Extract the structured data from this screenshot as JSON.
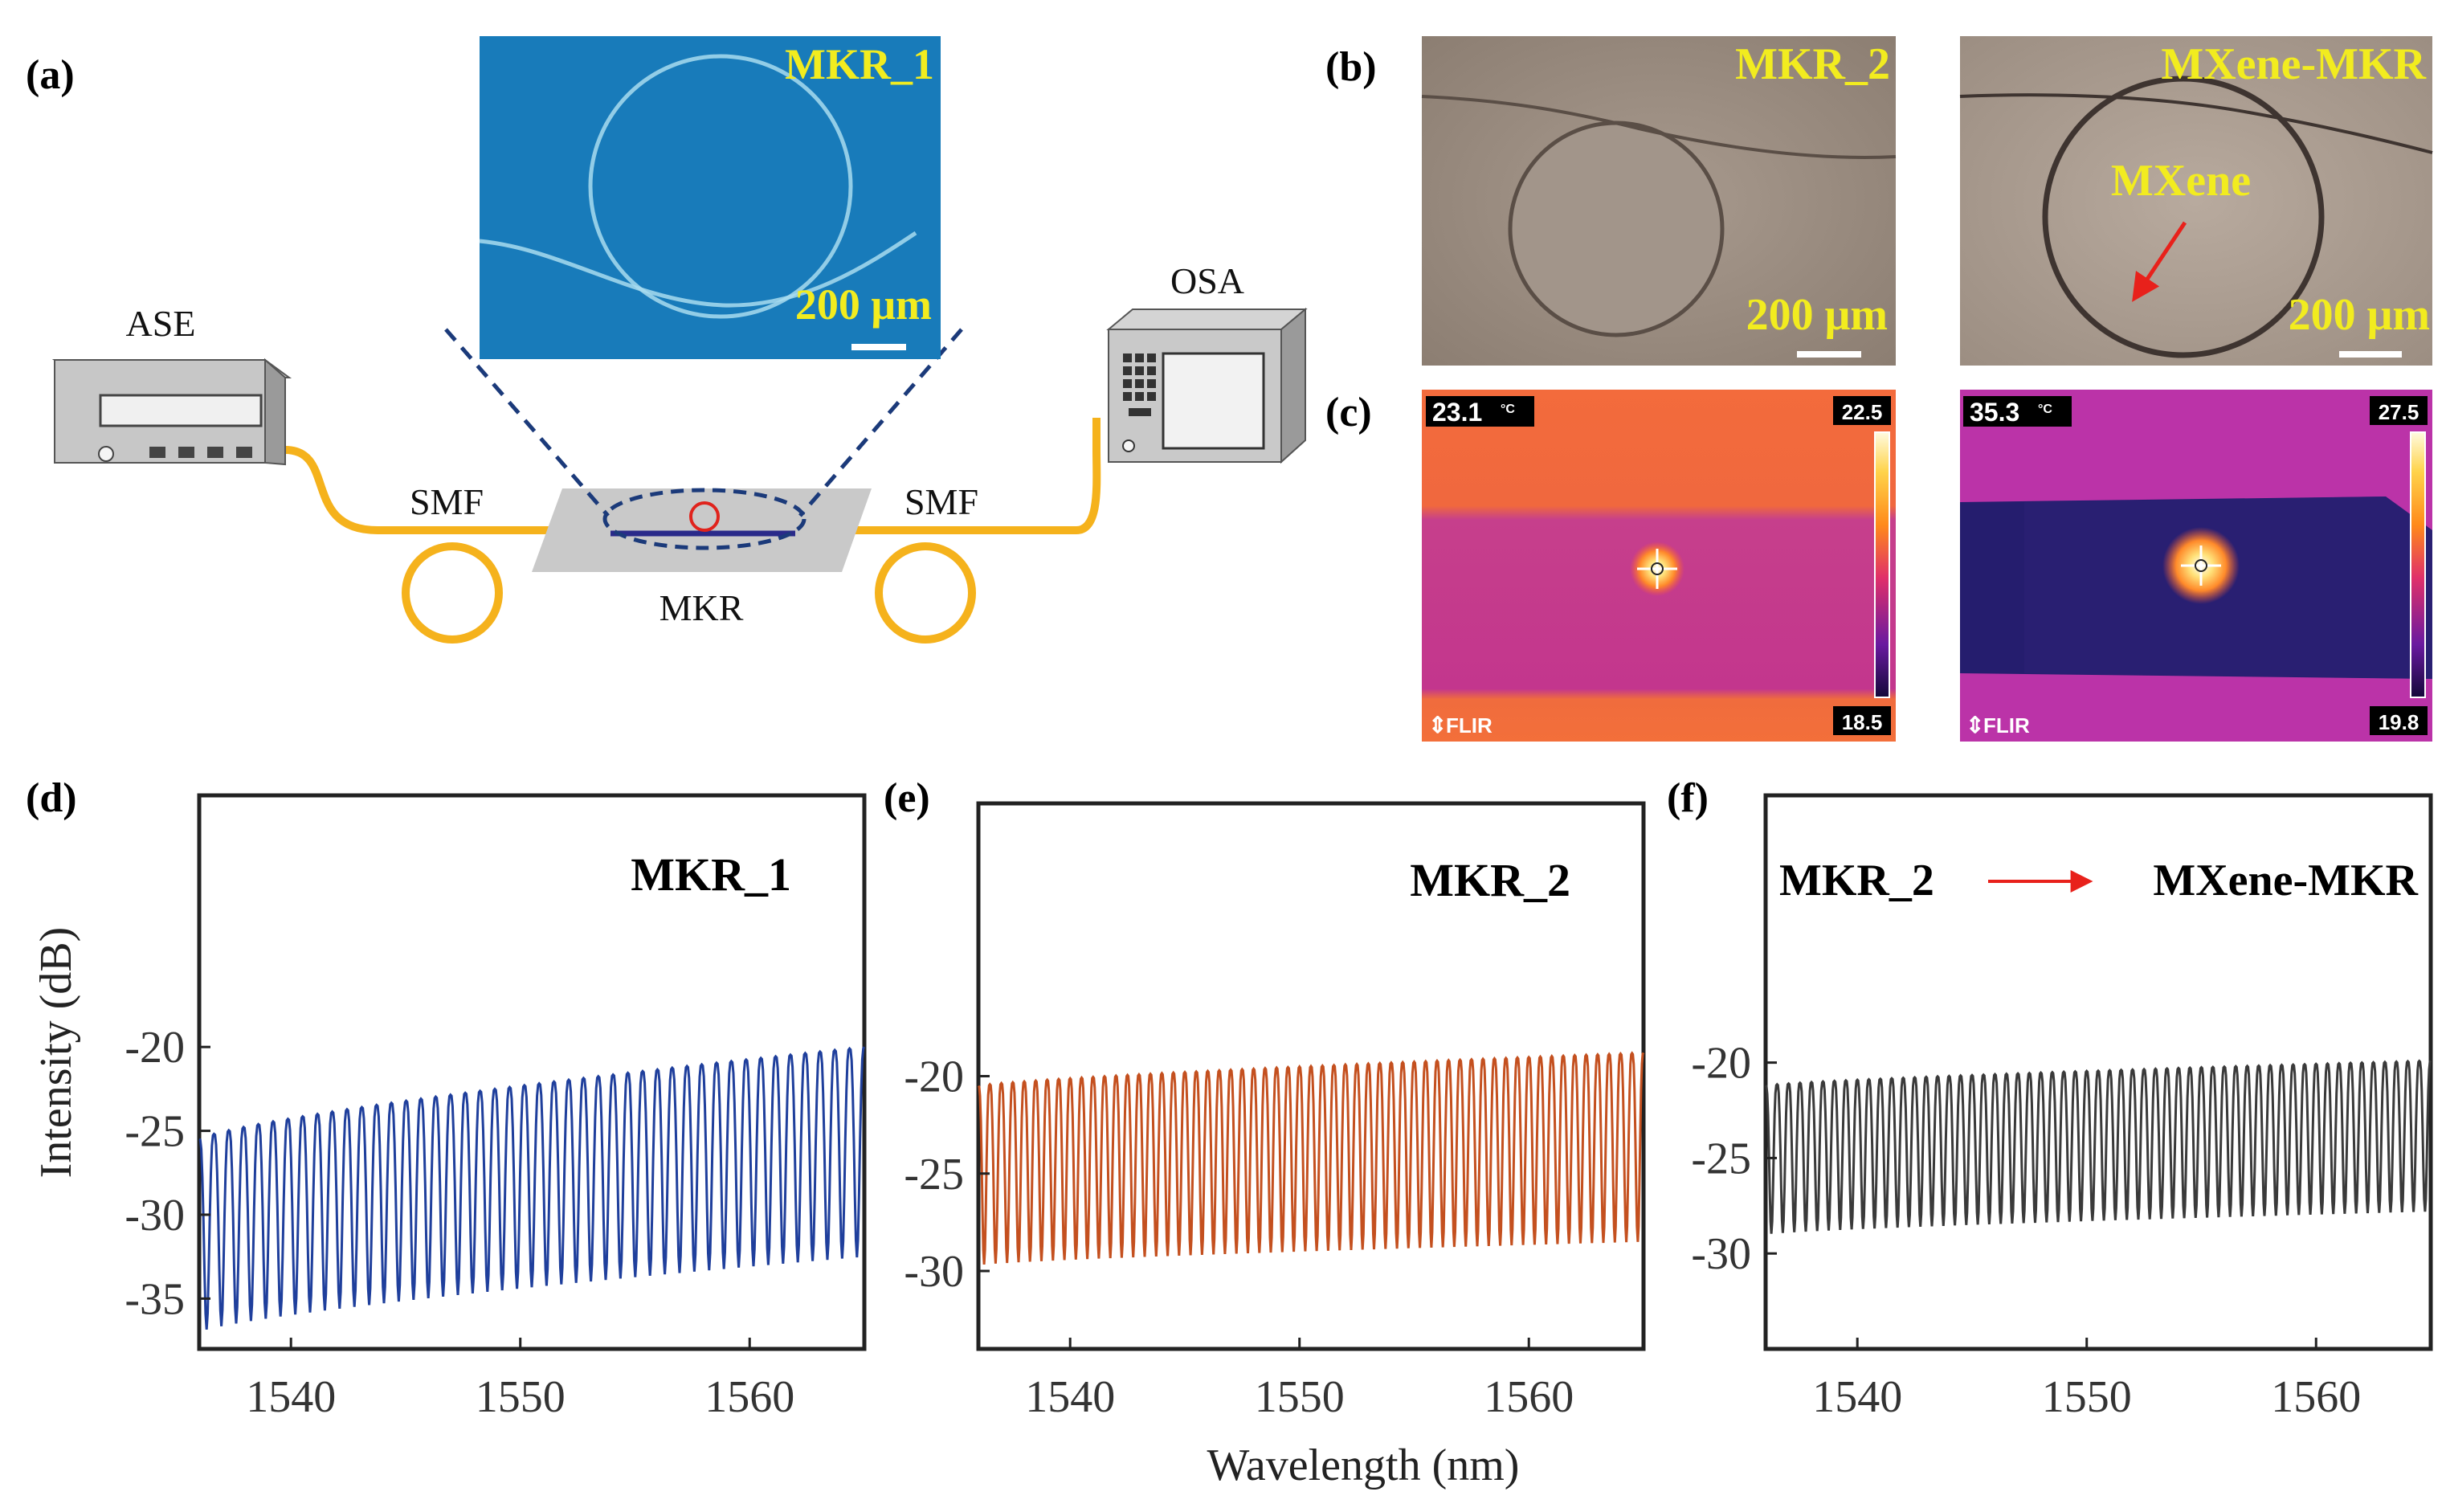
{
  "panel_labels": {
    "a": "(a)",
    "b": "(b)",
    "c": "(c)",
    "d": "(d)",
    "e": "(e)",
    "f": "(f)"
  },
  "setup": {
    "ase": "ASE",
    "osa": "OSA",
    "smf_left": "SMF",
    "smf_right": "SMF",
    "mkr": "MKR",
    "inset_title": "MKR_1",
    "inset_scale": "200 μm"
  },
  "micrographs": {
    "left_title": "MKR_2",
    "left_scale": "200 μm",
    "right_title": "MXene-MKR",
    "right_scale": "200 μm",
    "right_annotation": "MXene"
  },
  "thermal": {
    "left": {
      "temp": "23.1",
      "unit": "°C",
      "scale_max": "22.5",
      "scale_min": "18.5",
      "brand": "FLIR"
    },
    "right": {
      "temp": "35.3",
      "unit": "°C",
      "scale_max": "27.5",
      "scale_min": "19.8",
      "brand": "FLIR"
    }
  },
  "colors": {
    "fiber": "#f5b21c",
    "inset_bg": "#1c84c4",
    "series_d": "#1f3f9c",
    "series_e": "#c4501f",
    "series_f": "#3a3a3a",
    "arrow": "#e8211b",
    "label_yellow": "#f2ec1f"
  },
  "chart_data": [
    {
      "type": "line",
      "panel": "(d)",
      "title": "MKR_1",
      "xlabel": "Wavelength (nm)",
      "ylabel": "Intensity (dB)",
      "xlim": [
        1536,
        1565
      ],
      "ylim": [
        -38,
        -5
      ],
      "xticks": [
        1540,
        1550,
        1560
      ],
      "yticks": [
        -35,
        -30,
        -25,
        -20
      ],
      "series": [
        {
          "name": "MKR_1",
          "fringes": 45,
          "upper": [
            -25.5,
            -20
          ],
          "lower": [
            -37,
            -32.5
          ]
        }
      ]
    },
    {
      "type": "line",
      "panel": "(e)",
      "title": "MKR_2",
      "xlabel": "Wavelength (nm)",
      "ylabel": "Intensity (dB)",
      "xlim": [
        1536,
        1565
      ],
      "ylim": [
        -34,
        -6
      ],
      "xticks": [
        1540,
        1550,
        1560
      ],
      "yticks": [
        -30,
        -25,
        -20
      ],
      "series": [
        {
          "name": "MKR_2",
          "fringes": 58,
          "upper": [
            -20.5,
            -18.8
          ],
          "lower": [
            -29.7,
            -28.5
          ]
        }
      ]
    },
    {
      "type": "line",
      "panel": "(f)",
      "title": "MKR_2",
      "title_right": "MXene-MKR",
      "xlabel": "Wavelength (nm)",
      "ylabel": "Intensity (dB)",
      "xlim": [
        1536,
        1565
      ],
      "ylim": [
        -35,
        -6
      ],
      "xticks": [
        1540,
        1550,
        1560
      ],
      "yticks": [
        -30,
        -25,
        -20
      ],
      "series": [
        {
          "name": "MXene-MKR",
          "fringes": 58,
          "upper": [
            -21.2,
            -19.9
          ],
          "lower": [
            -29,
            -27.8
          ]
        }
      ]
    }
  ]
}
